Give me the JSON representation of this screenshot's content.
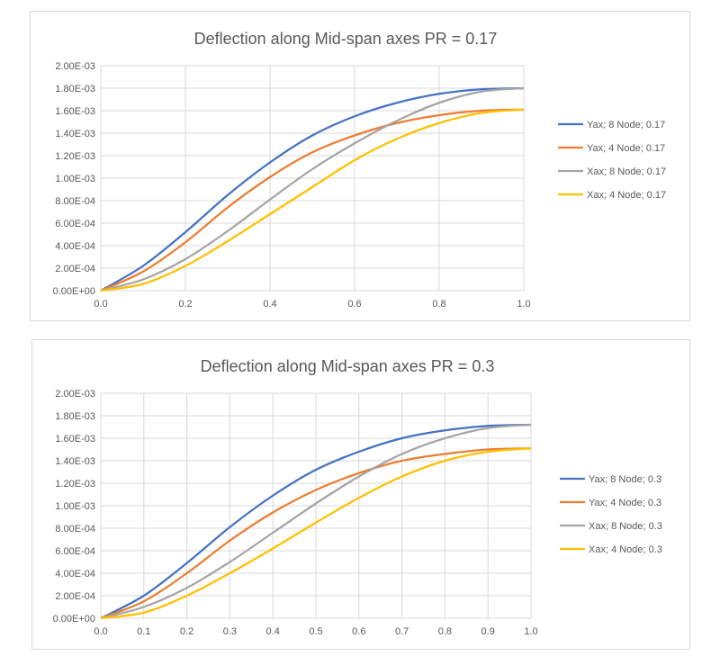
{
  "chart_data": [
    {
      "type": "line",
      "title": "Deflection along Mid-span axes PR = 0.17",
      "xlabel": "",
      "ylabel": "",
      "xlim": [
        0,
        1
      ],
      "ylim": [
        0,
        0.002
      ],
      "x_ticks": [
        "0.0",
        "0.2",
        "0.4",
        "0.6",
        "0.8",
        "1.0"
      ],
      "x_tick_values": [
        0,
        0.2,
        0.4,
        0.6,
        0.8,
        1.0
      ],
      "y_ticks": [
        "0.00E+00",
        "2.00E-04",
        "4.00E-04",
        "6.00E-04",
        "8.00E-04",
        "1.00E-03",
        "1.20E-03",
        "1.40E-03",
        "1.60E-03",
        "1.80E-03",
        "2.00E-03"
      ],
      "y_tick_values": [
        0,
        0.0002,
        0.0004,
        0.0006,
        0.0008,
        0.001,
        0.0012,
        0.0014,
        0.0016,
        0.0018,
        0.002
      ],
      "grid": true,
      "legend_position": "right",
      "x": [
        0,
        0.1,
        0.2,
        0.3,
        0.4,
        0.5,
        0.6,
        0.7,
        0.8,
        0.9,
        1.0
      ],
      "series": [
        {
          "name": "Yax; 8 Node; 0.17",
          "color": "#4472C4",
          "values": [
            0,
            0.00022,
            0.00052,
            0.00085,
            0.00114,
            0.00138,
            0.00155,
            0.00167,
            0.00175,
            0.00179,
            0.0018
          ]
        },
        {
          "name": "Yax; 4 Node; 0.17",
          "color": "#ED7D31",
          "values": [
            0,
            0.00017,
            0.00043,
            0.00074,
            0.00101,
            0.00123,
            0.00138,
            0.00149,
            0.00156,
            0.0016,
            0.00161
          ]
        },
        {
          "name": "Xax; 8 Node; 0.17",
          "color": "#A5A5A5",
          "values": [
            0,
            0.0001,
            0.00028,
            0.00053,
            0.00081,
            0.00108,
            0.00131,
            0.00151,
            0.00167,
            0.00177,
            0.0018
          ]
        },
        {
          "name": "Xax; 4 Node; 0.17",
          "color": "#FFC000",
          "values": [
            0,
            6e-05,
            0.00022,
            0.00044,
            0.00068,
            0.00092,
            0.00116,
            0.00135,
            0.00149,
            0.00158,
            0.00161
          ]
        }
      ]
    },
    {
      "type": "line",
      "title": "Deflection along Mid-span axes PR = 0.3",
      "xlabel": "",
      "ylabel": "",
      "xlim": [
        0,
        1
      ],
      "ylim": [
        0,
        0.002
      ],
      "x_ticks": [
        "0.0",
        "0.1",
        "0.2",
        "0.3",
        "0.4",
        "0.5",
        "0.6",
        "0.7",
        "0.8",
        "0.9",
        "1.0"
      ],
      "x_tick_values": [
        0,
        0.1,
        0.2,
        0.3,
        0.4,
        0.5,
        0.6,
        0.7,
        0.8,
        0.9,
        1.0
      ],
      "y_ticks": [
        "0.00E+00",
        "2.00E-04",
        "4.00E-04",
        "6.00E-04",
        "8.00E-04",
        "1.00E-03",
        "1.20E-03",
        "1.40E-03",
        "1.60E-03",
        "1.80E-03",
        "2.00E-03"
      ],
      "y_tick_values": [
        0,
        0.0002,
        0.0004,
        0.0006,
        0.0008,
        0.001,
        0.0012,
        0.0014,
        0.0016,
        0.0018,
        0.002
      ],
      "grid": true,
      "legend_position": "right",
      "x": [
        0,
        0.1,
        0.2,
        0.3,
        0.4,
        0.5,
        0.6,
        0.7,
        0.8,
        0.9,
        1.0
      ],
      "series": [
        {
          "name": "Yax; 8 Node; 0.3",
          "color": "#4472C4",
          "values": [
            0,
            0.0002,
            0.00049,
            0.00081,
            0.00109,
            0.00132,
            0.00148,
            0.0016,
            0.00167,
            0.00171,
            0.00172
          ]
        },
        {
          "name": "Yax; 4 Node; 0.3",
          "color": "#ED7D31",
          "values": [
            0,
            0.00015,
            0.0004,
            0.00069,
            0.00094,
            0.00114,
            0.00129,
            0.0014,
            0.00146,
            0.0015,
            0.00151
          ]
        },
        {
          "name": "Xax; 8 Node; 0.3",
          "color": "#A5A5A5",
          "values": [
            0,
            0.0001,
            0.00027,
            0.0005,
            0.00076,
            0.00102,
            0.00126,
            0.00146,
            0.0016,
            0.00169,
            0.00172
          ]
        },
        {
          "name": "Xax; 4 Node; 0.3",
          "color": "#FFC000",
          "values": [
            0,
            5e-05,
            0.0002,
            0.0004,
            0.00062,
            0.00085,
            0.00107,
            0.00126,
            0.0014,
            0.00148,
            0.00151
          ]
        }
      ]
    }
  ]
}
